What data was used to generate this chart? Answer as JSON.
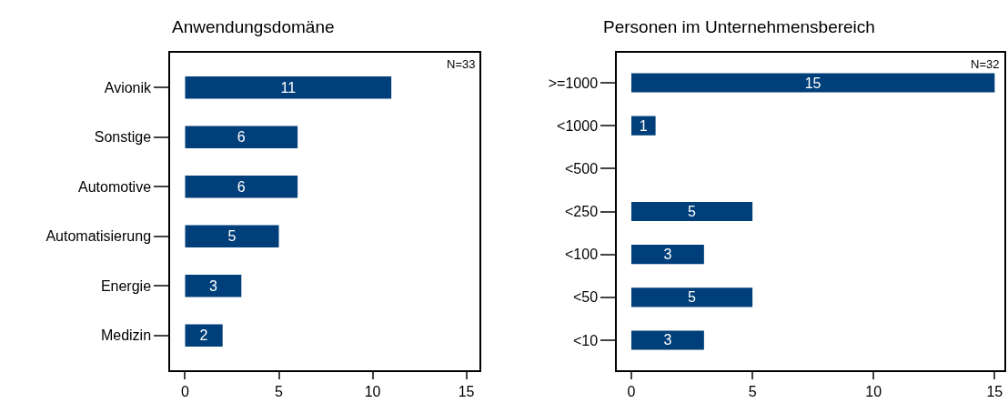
{
  "chart_data": [
    {
      "type": "bar",
      "orientation": "horizontal",
      "title": "Anwendungsdomäne",
      "categories": [
        "Avionik",
        "Sonstige",
        "Automotive",
        "Automatisierung",
        "Energie",
        "Medizin"
      ],
      "series": [
        {
          "color": "#003f7a",
          "values": [
            11,
            6,
            6,
            5,
            3,
            2
          ]
        }
      ],
      "xlim": [
        -0.8,
        15.7
      ],
      "xticks": [
        0,
        5,
        10,
        15
      ],
      "data_labels": true,
      "annotations": [
        "N=33"
      ]
    },
    {
      "type": "bar",
      "orientation": "horizontal",
      "title": "Personen im Unternehmensbereich",
      "categories": [
        ">=1000",
        "<1000",
        "<500",
        "<250",
        "<100",
        "<50",
        "<10"
      ],
      "series": [
        {
          "color": "#003f7a",
          "values": [
            15,
            1,
            0,
            5,
            3,
            5,
            3
          ],
          "value_labels": [
            "15",
            "1",
            null,
            "5",
            "3",
            "5",
            "3"
          ]
        }
      ],
      "xlim": [
        -0.6,
        15.4
      ],
      "xticks": [
        0,
        5,
        10,
        15
      ],
      "annotations": [
        "N=32"
      ]
    }
  ]
}
